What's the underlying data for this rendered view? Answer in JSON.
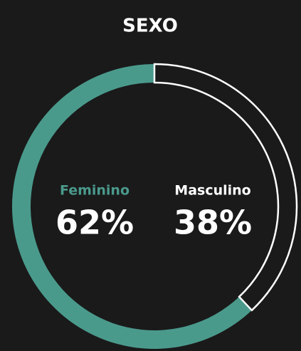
{
  "chart_data": {
    "type": "donut",
    "title": "SEXO",
    "categories": [
      "Feminino",
      "Masculino"
    ],
    "values": [
      62,
      38
    ],
    "value_labels": [
      "62%",
      "38%"
    ],
    "colors": [
      "#4a9a8c",
      "#ffffff"
    ]
  }
}
